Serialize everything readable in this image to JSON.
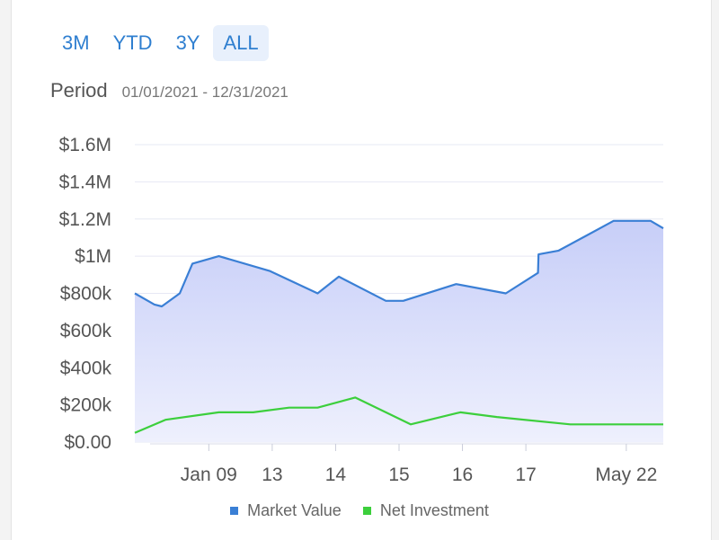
{
  "range_tabs": [
    "3M",
    "YTD",
    "3Y",
    "ALL"
  ],
  "active_tab": "ALL",
  "period": {
    "label": "Period",
    "value": "01/01/2021 - 12/31/2021"
  },
  "colors": {
    "market_value": "#3a7fd5",
    "net_investment": "#3ccf3c",
    "area_top": "#c7cef8",
    "area_bottom": "#eef0fd",
    "grid": "#e6e8f4",
    "tab_text": "#2f7fd0",
    "tab_active_bg": "#e8f0fc"
  },
  "chart_data": {
    "type": "area",
    "ylim": [
      0,
      1600000
    ],
    "y_ticks": [
      {
        "value": 0,
        "label": "$0.00"
      },
      {
        "value": 200000,
        "label": "$200k"
      },
      {
        "value": 400000,
        "label": "$400k"
      },
      {
        "value": 600000,
        "label": "$600k"
      },
      {
        "value": 800000,
        "label": "$800k"
      },
      {
        "value": 1000000,
        "label": "$1M"
      },
      {
        "value": 1200000,
        "label": "$1.2M"
      },
      {
        "value": 1400000,
        "label": "$1.4M"
      },
      {
        "value": 1600000,
        "label": "$1.6M"
      }
    ],
    "xlim": [
      0,
      100
    ],
    "x_ticks": [
      {
        "x": 14,
        "label": "Jan 09"
      },
      {
        "x": 26,
        "label": "13"
      },
      {
        "x": 38,
        "label": "14"
      },
      {
        "x": 50,
        "label": "15"
      },
      {
        "x": 62,
        "label": "16"
      },
      {
        "x": 74,
        "label": "17"
      },
      {
        "x": 93,
        "label": "May 22"
      }
    ],
    "grid": true,
    "legend_position": "bottom",
    "series": [
      {
        "name": "Market Value",
        "points": [
          [
            0,
            800000
          ],
          [
            3.7,
            740000
          ],
          [
            5.1,
            730000
          ],
          [
            8.5,
            800000
          ],
          [
            10.9,
            960000
          ],
          [
            15.9,
            1000000
          ],
          [
            25.6,
            920000
          ],
          [
            34.6,
            800000
          ],
          [
            38.6,
            890000
          ],
          [
            47.5,
            760000
          ],
          [
            50.8,
            760000
          ],
          [
            60.8,
            850000
          ],
          [
            70.2,
            800000
          ],
          [
            76.3,
            910000
          ],
          [
            76.4,
            1010000
          ],
          [
            80.2,
            1030000
          ],
          [
            85.4,
            1110000
          ],
          [
            90.6,
            1190000
          ],
          [
            97.6,
            1190000
          ],
          [
            100,
            1150000
          ]
        ]
      },
      {
        "name": "Net Investment",
        "points": [
          [
            0,
            50000
          ],
          [
            5.8,
            120000
          ],
          [
            15.9,
            160000
          ],
          [
            22.4,
            160000
          ],
          [
            29.2,
            185000
          ],
          [
            34.6,
            185000
          ],
          [
            41.7,
            240000
          ],
          [
            52.2,
            95000
          ],
          [
            61.6,
            160000
          ],
          [
            68.5,
            135000
          ],
          [
            82.4,
            95000
          ],
          [
            100,
            95000
          ]
        ]
      }
    ]
  }
}
